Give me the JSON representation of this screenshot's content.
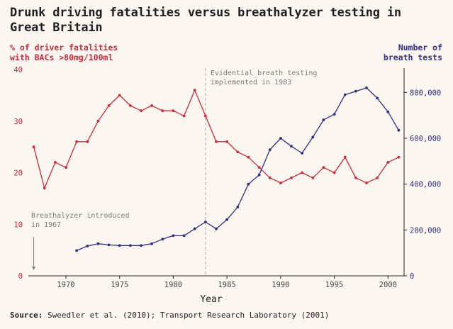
{
  "colors": {
    "background": "#fcf6f1",
    "left_series": "#d2283a",
    "right_series": "#2e2f82",
    "annotation": "#7a7a7a",
    "axis": "#222222",
    "dashed_line": "#bbbbbb"
  },
  "title": "Drunk driving fatalities versus breathalyzer testing in Great Britain",
  "source": {
    "label": "Source:",
    "text": "Sweedler et al. (2010); Transport Research Laboratory (2001)"
  },
  "chart_data": {
    "type": "line",
    "title": "Drunk driving fatalities versus breathalyzer testing in Great Britain",
    "xlabel": "Year",
    "xlim": [
      1966.5,
      2001.5
    ],
    "x_ticks": [
      1970,
      1975,
      1980,
      1985,
      1990,
      1995,
      2000
    ],
    "y_left": {
      "label_lines": [
        "% of driver fatalities",
        "with BACs >80mg/100ml"
      ],
      "lim": [
        0,
        40
      ],
      "ticks": [
        0,
        10,
        20,
        30,
        40
      ]
    },
    "y_right": {
      "label_lines": [
        "Number of",
        "breath tests"
      ],
      "lim": [
        0,
        900000
      ],
      "ticks": [
        0,
        200000,
        400000,
        600000,
        800000
      ],
      "tick_labels": [
        "0",
        "200,000",
        "400,000",
        "600,000",
        "800,000"
      ]
    },
    "series": [
      {
        "axis": "left",
        "color": "#d2283a",
        "x": [
          1967,
          1968,
          1969,
          1970,
          1971,
          1972,
          1973,
          1974,
          1975,
          1976,
          1977,
          1978,
          1979,
          1980,
          1981,
          1982,
          1983,
          1984,
          1985,
          1986,
          1987,
          1988,
          1989,
          1990,
          1991,
          1992,
          1993,
          1994,
          1995,
          1996,
          1997,
          1998,
          1999,
          2000,
          2001
        ],
        "values": [
          25,
          17,
          22,
          21,
          26,
          26,
          30,
          33,
          35,
          33,
          32,
          33,
          32,
          32,
          31,
          36,
          31,
          26,
          26,
          24,
          23,
          21,
          19,
          18,
          19,
          20,
          19,
          21,
          20,
          23,
          19,
          18,
          19,
          22,
          23
        ]
      },
      {
        "axis": "right",
        "color": "#2e2f82",
        "x": [
          1971,
          1972,
          1973,
          1974,
          1975,
          1976,
          1977,
          1978,
          1979,
          1980,
          1981,
          1982,
          1983,
          1984,
          1985,
          1986,
          1987,
          1988,
          1989,
          1990,
          1991,
          1992,
          1993,
          1994,
          1995,
          1996,
          1997,
          1998,
          1999,
          2000,
          2001
        ],
        "values": [
          110000,
          130000,
          140000,
          135000,
          132000,
          132000,
          132000,
          140000,
          160000,
          175000,
          175000,
          205000,
          235000,
          205000,
          245000,
          300000,
          400000,
          440000,
          550000,
          600000,
          565000,
          535000,
          605000,
          680000,
          705000,
          790000,
          805000,
          820000,
          775000,
          715000,
          635000
        ]
      }
    ],
    "annotations": [
      {
        "x": 1983,
        "text_lines": [
          "Evidential breath testing",
          "implemented in 1983"
        ],
        "dashed_line": true
      },
      {
        "x": 1967,
        "text_lines": [
          "Breathalyzer introduced",
          "in 1967"
        ],
        "arrow": true
      }
    ],
    "grid": false,
    "legend": "none"
  }
}
